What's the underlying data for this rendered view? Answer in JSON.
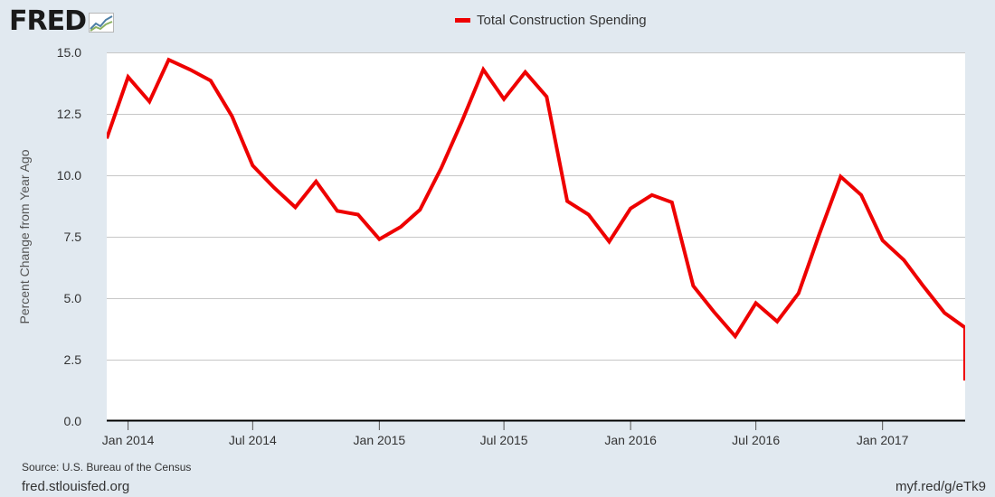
{
  "logo": {
    "text": "FRED"
  },
  "chart_data": {
    "type": "line",
    "title": "",
    "xlabel": "",
    "ylabel": "Percent Change from Year Ago",
    "ylim": [
      0,
      15
    ],
    "yticks": [
      "0.0",
      "2.5",
      "5.0",
      "7.5",
      "10.0",
      "12.5",
      "15.0"
    ],
    "xlim": [
      "2013-12-01",
      "2017-05-01"
    ],
    "xticks": [
      {
        "date": "2014-01-01",
        "label": "Jan 2014"
      },
      {
        "date": "2014-07-01",
        "label": "Jul 2014"
      },
      {
        "date": "2015-01-01",
        "label": "Jan 2015"
      },
      {
        "date": "2015-07-01",
        "label": "Jul 2015"
      },
      {
        "date": "2016-01-01",
        "label": "Jan 2016"
      },
      {
        "date": "2016-07-01",
        "label": "Jul 2016"
      },
      {
        "date": "2017-01-01",
        "label": "Jan 2017"
      }
    ],
    "grid": true,
    "legend": "top-center",
    "series": [
      {
        "name": "Total Construction Spending",
        "color": "#ee0000",
        "x": [
          "2013-12-01",
          "2014-01-01",
          "2014-02-01",
          "2014-03-01",
          "2014-04-01",
          "2014-05-01",
          "2014-06-01",
          "2014-07-01",
          "2014-08-01",
          "2014-09-01",
          "2014-10-01",
          "2014-11-01",
          "2014-12-01",
          "2015-01-01",
          "2015-02-01",
          "2015-03-01",
          "2015-04-01",
          "2015-05-01",
          "2015-06-01",
          "2015-07-01",
          "2015-08-01",
          "2015-09-01",
          "2015-10-01",
          "2015-11-01",
          "2015-12-01",
          "2016-01-01",
          "2016-02-01",
          "2016-03-01",
          "2016-04-01",
          "2016-05-01",
          "2016-06-01",
          "2016-07-01",
          "2016-08-01",
          "2016-09-01",
          "2016-10-01",
          "2016-11-01",
          "2016-12-01",
          "2017-01-01",
          "2017-02-01",
          "2017-03-01",
          "2017-04-01",
          "2017-05-01"
        ],
        "values": [
          11.5,
          14.0,
          13.0,
          14.7,
          14.3,
          13.85,
          12.4,
          10.4,
          9.5,
          8.7,
          9.75,
          8.55,
          8.4,
          7.4,
          7.9,
          8.6,
          10.3,
          12.2,
          14.3,
          13.1,
          14.2,
          13.2,
          8.95,
          8.4,
          7.3,
          8.65,
          9.2,
          8.9,
          5.5,
          4.45,
          3.45,
          4.8,
          4.05,
          5.2,
          7.6,
          9.95,
          9.2,
          7.35,
          6.55,
          5.5,
          4.4,
          3.8
        ]
      }
    ],
    "tail_value": 1.65,
    "tail_fraction_of_month": 0.65
  },
  "source": "Source: U.S. Bureau of the Census",
  "footer": {
    "left": "fred.stlouisfed.org",
    "right": "myf.red/g/eTk9"
  }
}
